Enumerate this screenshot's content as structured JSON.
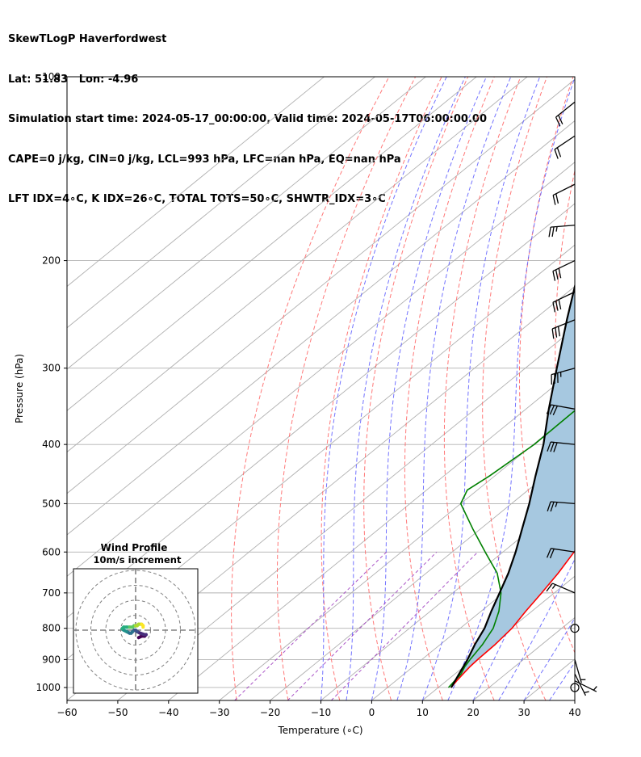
{
  "header": {
    "line1": "SkewTLogP Haverfordwest",
    "line2": "Lat: 51.83   Lon: -4.96",
    "line3": "Simulation start time: 2024-05-17_00:00:00, Valid time: 2024-05-17T06:00:00.00",
    "line4": "CAPE=0 j/kg, CIN=0 j/kg, LCL=993 hPa, LFC=nan hPa, EQ=nan hPa",
    "line5": "LFT IDX=4∘C, K IDX=26∘C, TOTAL TOTS=50∘C, SHWTR_IDX=3∘C"
  },
  "chart_data": [
    {
      "type": "line",
      "subtype": "skew-t log-p",
      "xlabel": "Temperature (∘C)",
      "ylabel": "Pressure (hPa)",
      "xlim": [
        -60,
        40
      ],
      "ylim": [
        1050,
        100
      ],
      "y_scale": "log",
      "x_ticks": [
        -60,
        -50,
        -40,
        -30,
        -20,
        -10,
        0,
        10,
        20,
        30,
        40
      ],
      "x_tick_labels": [
        "−60",
        "−50",
        "−40",
        "−30",
        "−20",
        "−10",
        "0",
        "10",
        "20",
        "30",
        "40"
      ],
      "y_ticks": [
        100,
        200,
        300,
        400,
        500,
        600,
        700,
        800,
        900,
        1000
      ],
      "y_tick_labels": [
        "100",
        "200",
        "300",
        "400",
        "500",
        "600",
        "700",
        "800",
        "900",
        "1000"
      ],
      "grid": true,
      "colors": {
        "temperature": "#ff0000",
        "dewpoint": "#008000",
        "parcel": "#000000",
        "cape_shading": "#a6c8e0",
        "dry_adiabats": "#ff6060",
        "moist_adiabats": "#5a5aff",
        "mixing_ratio": "#a040c0",
        "isotherms": "#b0b0b0"
      },
      "temperature": [
        [
          1000,
          12.5
        ],
        [
          975,
          12.0
        ],
        [
          950,
          11.6
        ],
        [
          925,
          11.2
        ],
        [
          900,
          11.0
        ],
        [
          850,
          10.8
        ],
        [
          800,
          10.2
        ],
        [
          750,
          8.8
        ],
        [
          700,
          7.5
        ],
        [
          650,
          6.0
        ],
        [
          600,
          4.0
        ],
        [
          550,
          1.6
        ],
        [
          500,
          -1.0
        ],
        [
          450,
          -4.5
        ],
        [
          400,
          -9.2
        ],
        [
          350,
          -14.5
        ],
        [
          330,
          -17.0
        ],
        [
          300,
          -21.5
        ],
        [
          275,
          -25.0
        ],
        [
          250,
          -28.5
        ],
        [
          225,
          -33.0
        ],
        [
          200,
          -38.0
        ],
        [
          180,
          -42.0
        ],
        [
          160,
          -47.0
        ],
        [
          140,
          -51.5
        ],
        [
          120,
          -56.0
        ],
        [
          100,
          -61.0
        ]
      ],
      "dewpoint": [
        [
          1000,
          12.0
        ],
        [
          975,
          11.6
        ],
        [
          950,
          11.2
        ],
        [
          925,
          10.2
        ],
        [
          900,
          9.5
        ],
        [
          850,
          8.3
        ],
        [
          800,
          6.5
        ],
        [
          750,
          3.5
        ],
        [
          700,
          -0.5
        ],
        [
          650,
          -6.0
        ],
        [
          600,
          -13.5
        ],
        [
          550,
          -21.5
        ],
        [
          500,
          -30.0
        ],
        [
          475,
          -32.0
        ],
        [
          450,
          -31.0
        ],
        [
          400,
          -29.8
        ],
        [
          350,
          -30.0
        ],
        [
          330,
          -30.8
        ],
        [
          300,
          -32.5
        ],
        [
          275,
          -36.5
        ],
        [
          250,
          -43.0
        ],
        [
          225,
          -47.0
        ],
        [
          200,
          -51.0
        ],
        [
          190,
          -53.0
        ],
        [
          175,
          -57.5
        ],
        [
          160,
          -59.0
        ],
        [
          140,
          -62.0
        ],
        [
          120,
          -65.5
        ],
        [
          100,
          -70.0
        ]
      ],
      "parcel": [
        [
          1000,
          12.5
        ],
        [
          993,
          12.3
        ],
        [
          950,
          10.8
        ],
        [
          900,
          9.0
        ],
        [
          850,
          6.8
        ],
        [
          800,
          4.8
        ],
        [
          750,
          2.0
        ],
        [
          700,
          -0.8
        ],
        [
          650,
          -3.8
        ],
        [
          600,
          -7.5
        ],
        [
          550,
          -11.8
        ],
        [
          500,
          -16.5
        ],
        [
          450,
          -22.0
        ],
        [
          400,
          -28.0
        ],
        [
          350,
          -35.5
        ],
        [
          300,
          -43.8
        ],
        [
          250,
          -53.5
        ],
        [
          200,
          -65.0
        ],
        [
          150,
          -80.0
        ],
        [
          120,
          -91.0
        ],
        [
          100,
          -101.0
        ]
      ],
      "wind_barbs": [
        {
          "pressure": 1000,
          "u": -2,
          "v": 1
        },
        {
          "pressure": 975,
          "u": -4,
          "v": 2
        },
        {
          "pressure": 950,
          "u": -3,
          "v": 6
        },
        {
          "pressure": 900,
          "u": -2,
          "v": 7
        },
        {
          "pressure": 800,
          "u": 0,
          "v": 0
        },
        {
          "pressure": 700,
          "u": 14,
          "v": -6
        },
        {
          "pressure": 600,
          "u": 20,
          "v": -3
        },
        {
          "pressure": 500,
          "u": 25,
          "v": -2
        },
        {
          "pressure": 400,
          "u": 29,
          "v": -3
        },
        {
          "pressure": 350,
          "u": 28,
          "v": -5
        },
        {
          "pressure": 300,
          "u": 33,
          "v": 9
        },
        {
          "pressure": 250,
          "u": 30,
          "v": 12
        },
        {
          "pressure": 225,
          "u": 25,
          "v": 12
        },
        {
          "pressure": 200,
          "u": 25,
          "v": 12
        },
        {
          "pressure": 175,
          "u": 25,
          "v": 2
        },
        {
          "pressure": 150,
          "u": 20,
          "v": 10
        },
        {
          "pressure": 125,
          "u": 15,
          "v": 10
        },
        {
          "pressure": 110,
          "u": 15,
          "v": 12
        }
      ]
    },
    {
      "type": "line",
      "subtype": "hodograph",
      "title": "Wind Profile",
      "subtitle": "10m/s increment",
      "ring_increment": 10,
      "rings": 4,
      "colormap": "viridis",
      "points": [
        [
          2,
          -5
        ],
        [
          4,
          -4
        ],
        [
          6,
          -4
        ],
        [
          7,
          -3
        ],
        [
          6,
          -3
        ],
        [
          3,
          -2
        ],
        [
          1,
          -1
        ],
        [
          0,
          0
        ],
        [
          -1,
          0
        ],
        [
          -2,
          -1
        ],
        [
          -3,
          -2
        ],
        [
          -4,
          -2
        ],
        [
          -6,
          -1
        ],
        [
          -8,
          0
        ],
        [
          -9,
          1
        ],
        [
          -8,
          2
        ],
        [
          -6,
          2
        ],
        [
          -4,
          2
        ],
        [
          -2,
          2
        ],
        [
          -1,
          3
        ],
        [
          0,
          3
        ],
        [
          1,
          3
        ],
        [
          2,
          4
        ],
        [
          4,
          4
        ],
        [
          5,
          3
        ],
        [
          5,
          2
        ]
      ]
    }
  ]
}
